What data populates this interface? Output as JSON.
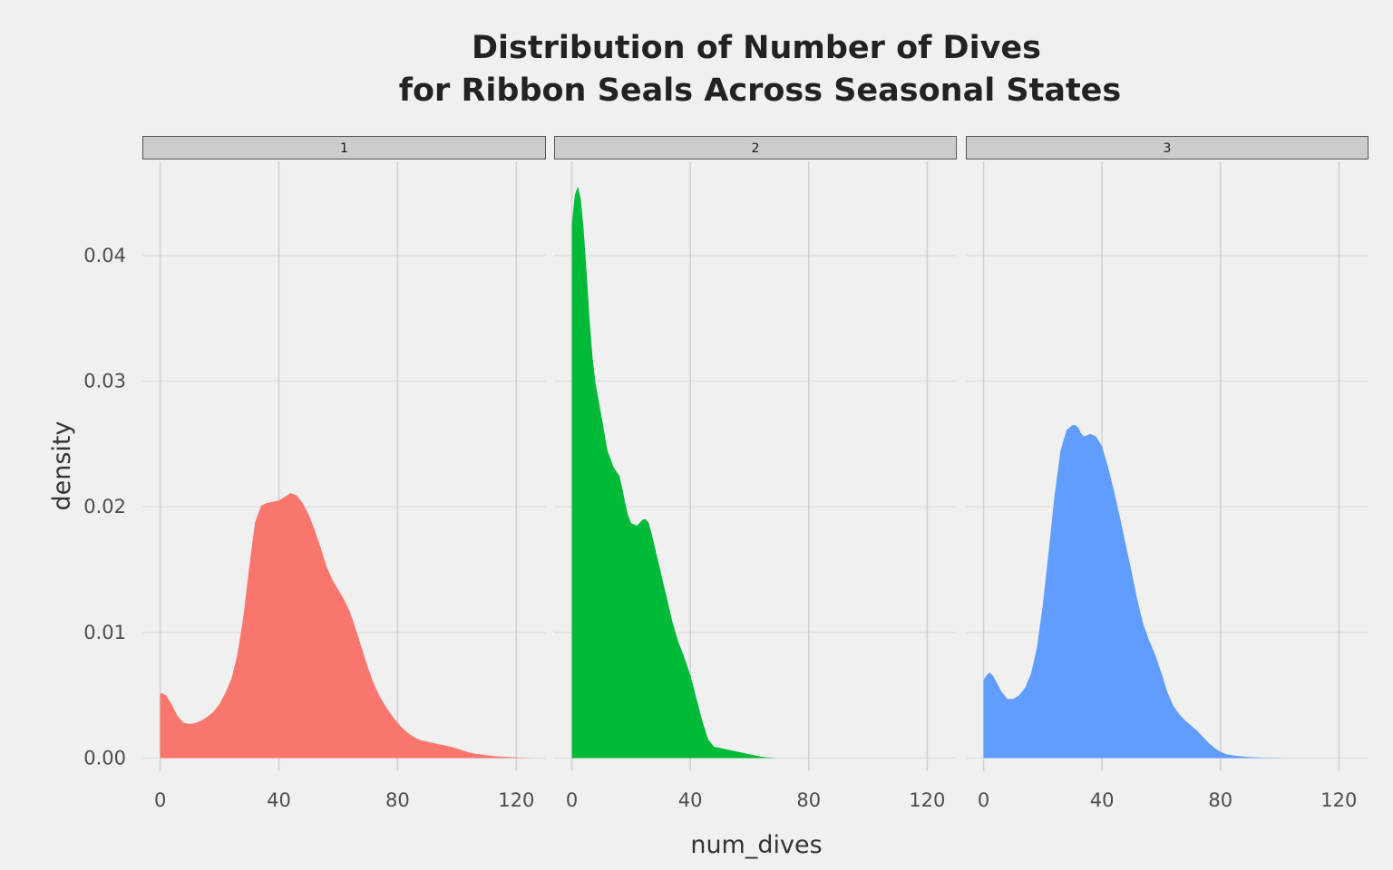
{
  "chart_data": {
    "type": "area",
    "title_lines": [
      "Distribution of Number of Dives",
      "for Ribbon Seals Across Seasonal States"
    ],
    "xlabel": "num_dives",
    "ylabel": "density",
    "xlim": [
      -6,
      130
    ],
    "ylim": [
      -0.00105,
      0.0475
    ],
    "x_ticks": [
      0,
      40,
      80,
      120
    ],
    "y_ticks": [
      0.0,
      0.01,
      0.02,
      0.03,
      0.04
    ],
    "y_tick_labels": [
      "0.00",
      "0.01",
      "0.02",
      "0.03",
      "0.04"
    ],
    "x_tick_labels": [
      "0",
      "40",
      "80",
      "120"
    ],
    "grid": true,
    "legend": "none",
    "facets": [
      {
        "label": "1",
        "color": "#F8766D",
        "x": [
          0,
          2,
          4,
          6,
          8,
          10,
          12,
          14,
          16,
          18,
          20,
          22,
          24,
          26,
          28,
          30,
          32,
          34,
          36,
          38,
          40,
          42,
          44,
          46,
          48,
          50,
          52,
          54,
          56,
          58,
          60,
          62,
          64,
          66,
          68,
          70,
          72,
          74,
          76,
          78,
          80,
          82,
          84,
          86,
          88,
          90,
          92,
          94,
          96,
          98,
          100,
          102,
          104,
          106,
          108,
          110,
          112,
          114,
          116,
          118,
          120,
          122,
          124,
          125
        ],
        "y": [
          0.0052,
          0.005,
          0.0042,
          0.0033,
          0.0028,
          0.0027,
          0.0028,
          0.003,
          0.0033,
          0.0037,
          0.0043,
          0.0052,
          0.0063,
          0.0082,
          0.0112,
          0.0152,
          0.0188,
          0.0201,
          0.0203,
          0.0204,
          0.0205,
          0.0208,
          0.0211,
          0.0209,
          0.0203,
          0.0194,
          0.0182,
          0.0168,
          0.0153,
          0.0142,
          0.0134,
          0.0126,
          0.0116,
          0.0102,
          0.0087,
          0.0072,
          0.0059,
          0.0049,
          0.0041,
          0.0034,
          0.0028,
          0.0023,
          0.0019,
          0.0016,
          0.0014,
          0.0013,
          0.0012,
          0.0011,
          0.001,
          0.0009,
          0.00075,
          0.0006,
          0.00045,
          0.00035,
          0.00028,
          0.00022,
          0.00017,
          0.00013,
          0.0001,
          7e-05,
          5e-05,
          3e-05,
          1e-05,
          0
        ]
      },
      {
        "label": "2",
        "color": "#00BA38",
        "x": [
          0,
          1,
          2,
          3,
          4,
          5,
          6,
          7,
          8,
          10,
          12,
          14,
          15,
          16,
          17,
          18,
          19,
          20,
          22,
          24,
          25,
          26,
          27,
          28,
          29,
          30,
          32,
          34,
          36,
          38,
          40,
          42,
          44,
          46,
          48,
          50,
          52,
          54,
          56,
          58,
          60,
          62,
          64,
          66,
          68,
          69
        ],
        "y": [
          0.0425,
          0.0448,
          0.0455,
          0.0445,
          0.042,
          0.0385,
          0.0348,
          0.0318,
          0.0298,
          0.0272,
          0.0245,
          0.0232,
          0.0228,
          0.0225,
          0.0215,
          0.0203,
          0.0193,
          0.0187,
          0.0185,
          0.019,
          0.019,
          0.0187,
          0.0178,
          0.0168,
          0.0158,
          0.0148,
          0.0128,
          0.0108,
          0.0092,
          0.008,
          0.0066,
          0.0048,
          0.003,
          0.0015,
          0.0009,
          0.0008,
          0.0007,
          0.0006,
          0.0005,
          0.0004,
          0.0003,
          0.0002,
          0.0001,
          5e-05,
          2e-05,
          0
        ]
      },
      {
        "label": "3",
        "color": "#619CFF",
        "x": [
          0,
          1,
          2,
          3,
          4,
          6,
          8,
          10,
          12,
          14,
          16,
          18,
          20,
          22,
          24,
          26,
          28,
          30,
          31,
          32,
          33,
          34,
          36,
          38,
          40,
          42,
          44,
          46,
          48,
          50,
          52,
          54,
          56,
          58,
          60,
          62,
          64,
          66,
          68,
          70,
          72,
          74,
          76,
          78,
          80,
          82,
          84,
          86,
          88,
          90,
          92,
          94,
          96,
          98,
          100,
          102,
          103
        ],
        "y": [
          0.0062,
          0.0066,
          0.0068,
          0.0066,
          0.0062,
          0.0053,
          0.0047,
          0.0047,
          0.005,
          0.0056,
          0.0067,
          0.0088,
          0.0122,
          0.0165,
          0.021,
          0.0245,
          0.0261,
          0.0265,
          0.0265,
          0.0263,
          0.0258,
          0.0256,
          0.0258,
          0.0256,
          0.0248,
          0.0232,
          0.0213,
          0.0192,
          0.017,
          0.0148,
          0.0125,
          0.0106,
          0.0093,
          0.0082,
          0.0068,
          0.0053,
          0.0042,
          0.0035,
          0.003,
          0.0026,
          0.0022,
          0.0017,
          0.0012,
          0.0008,
          0.0005,
          0.0003,
          0.00022,
          0.00016,
          0.00011,
          8e-05,
          5e-05,
          3e-05,
          2e-05,
          1e-05,
          5e-06,
          2e-06,
          0
        ]
      }
    ]
  }
}
